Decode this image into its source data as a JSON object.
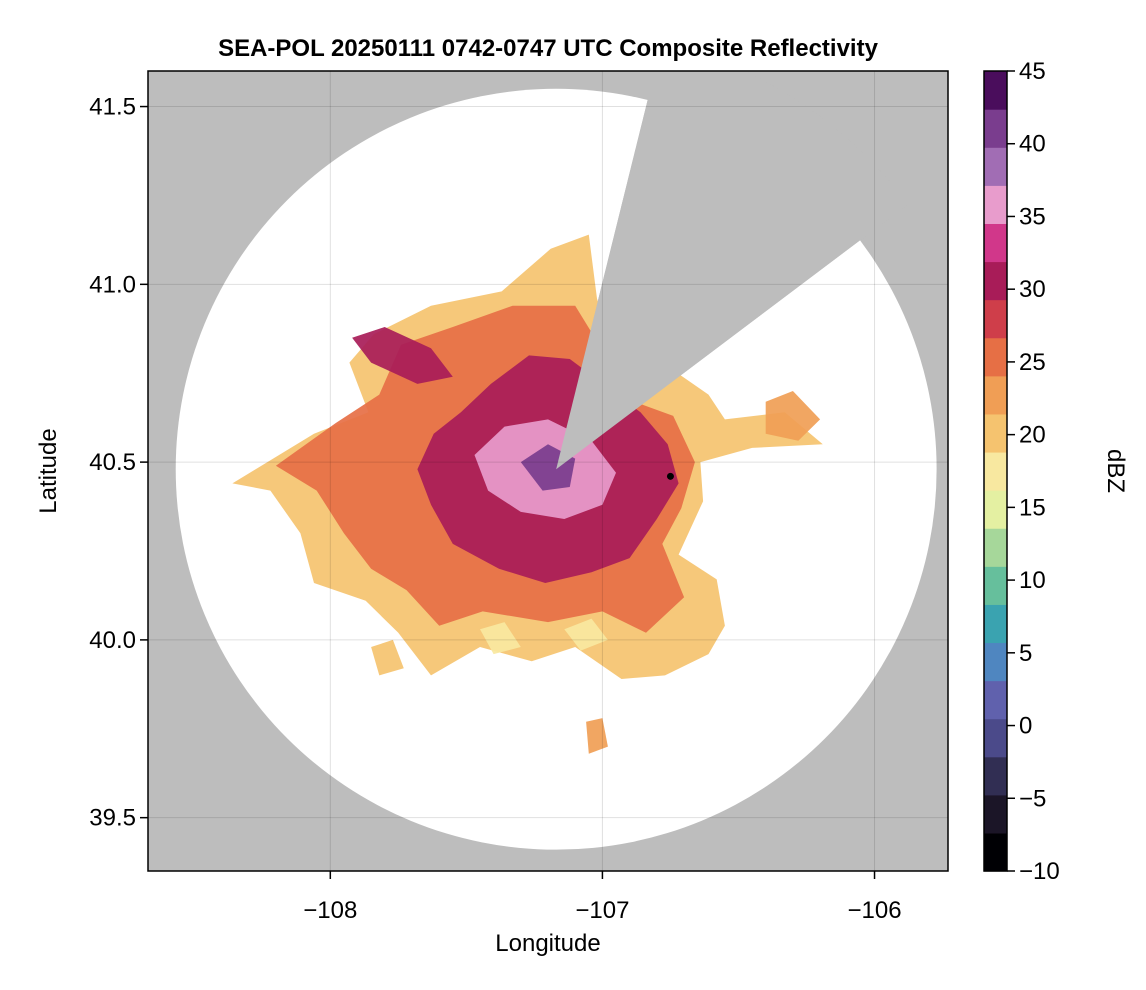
{
  "chart_data": {
    "type": "heatmap",
    "title": "SEA-POL 20250111 0742-0747 UTC Composite Reflectivity",
    "xlabel": "Longitude",
    "ylabel": "Latitude",
    "xlim": [
      -108.67,
      -105.73
    ],
    "ylim": [
      39.35,
      41.6
    ],
    "xticks": [
      -108,
      -107,
      -106
    ],
    "xtick_labels": [
      "−108",
      "−107",
      "−106"
    ],
    "yticks": [
      39.5,
      40.0,
      40.5,
      41.0,
      41.5
    ],
    "ytick_labels": [
      "39.5",
      "40.0",
      "40.5",
      "41.0",
      "41.5"
    ],
    "grid": true,
    "background_color": "#bdbdbd",
    "coverage_color": "#ffffff",
    "radar": {
      "center_lon": -107.17,
      "center_lat": 40.48,
      "range_lat_deg": 1.07,
      "blocked_sector": [
        [
          -106.83,
          41.53
        ],
        [
          -106.06,
          41.12
        ]
      ]
    },
    "marker": {
      "lon": -106.75,
      "lat": 40.46,
      "color": "#000000"
    },
    "colorbar": {
      "label": "dBZ",
      "min": -10,
      "max": 45,
      "ticks": [
        -10,
        -5,
        0,
        5,
        10,
        15,
        20,
        25,
        30,
        35,
        40,
        45
      ],
      "tick_labels": [
        "−10",
        "−5",
        "0",
        "5",
        "10",
        "15",
        "20",
        "25",
        "30",
        "35",
        "40",
        "45"
      ],
      "colors": [
        "#000004",
        "#1b1527",
        "#312e53",
        "#4b4a8a",
        "#6061ad",
        "#4f86c0",
        "#3aa3b0",
        "#66bf9c",
        "#a6d79a",
        "#e4f0a2",
        "#f8e8a0",
        "#f5c36f",
        "#f09e55",
        "#e66f45",
        "#cf3e4a",
        "#a81c58",
        "#d1378a",
        "#e89ccc",
        "#a16db4",
        "#7a3d8e",
        "#4a0d5c"
      ]
    },
    "echo_regions": [
      {
        "name": "outer-light",
        "dbz": 20,
        "points": [
          [
            -108.36,
            40.44
          ],
          [
            -108.06,
            40.58
          ],
          [
            -107.86,
            40.64
          ],
          [
            -107.93,
            40.78
          ],
          [
            -107.84,
            40.86
          ],
          [
            -107.63,
            40.94
          ],
          [
            -107.37,
            40.98
          ],
          [
            -107.19,
            41.1
          ],
          [
            -107.05,
            41.14
          ],
          [
            -107.02,
            40.96
          ],
          [
            -106.92,
            40.71
          ],
          [
            -106.78,
            40.78
          ],
          [
            -106.61,
            40.69
          ],
          [
            -106.55,
            40.62
          ],
          [
            -106.33,
            40.64
          ],
          [
            -106.19,
            40.55
          ],
          [
            -106.45,
            40.54
          ],
          [
            -106.64,
            40.5
          ],
          [
            -106.63,
            40.39
          ],
          [
            -106.72,
            40.24
          ],
          [
            -106.58,
            40.17
          ],
          [
            -106.55,
            40.04
          ],
          [
            -106.61,
            39.96
          ],
          [
            -106.77,
            39.9
          ],
          [
            -106.93,
            39.89
          ],
          [
            -107.1,
            39.98
          ],
          [
            -107.26,
            39.94
          ],
          [
            -107.45,
            39.98
          ],
          [
            -107.63,
            39.9
          ],
          [
            -107.75,
            40.02
          ],
          [
            -107.87,
            40.11
          ],
          [
            -108.06,
            40.16
          ],
          [
            -108.11,
            40.3
          ],
          [
            -108.22,
            40.42
          ]
        ]
      },
      {
        "name": "mid-orange",
        "dbz": 26,
        "points": [
          [
            -108.2,
            40.49
          ],
          [
            -107.98,
            40.61
          ],
          [
            -107.82,
            40.69
          ],
          [
            -107.74,
            40.83
          ],
          [
            -107.55,
            40.88
          ],
          [
            -107.33,
            40.94
          ],
          [
            -107.1,
            40.94
          ],
          [
            -106.98,
            40.79
          ],
          [
            -106.92,
            40.68
          ],
          [
            -106.74,
            40.63
          ],
          [
            -106.66,
            40.5
          ],
          [
            -106.71,
            40.37
          ],
          [
            -106.78,
            40.27
          ],
          [
            -106.7,
            40.12
          ],
          [
            -106.84,
            40.02
          ],
          [
            -107.0,
            40.08
          ],
          [
            -107.2,
            40.05
          ],
          [
            -107.44,
            40.08
          ],
          [
            -107.6,
            40.04
          ],
          [
            -107.72,
            40.14
          ],
          [
            -107.85,
            40.2
          ],
          [
            -107.95,
            40.3
          ],
          [
            -108.05,
            40.42
          ]
        ]
      },
      {
        "name": "strong-red",
        "dbz": 31,
        "points": [
          [
            -107.62,
            40.58
          ],
          [
            -107.52,
            40.64
          ],
          [
            -107.41,
            40.72
          ],
          [
            -107.27,
            40.8
          ],
          [
            -107.12,
            40.79
          ],
          [
            -106.98,
            40.71
          ],
          [
            -106.86,
            40.64
          ],
          [
            -106.76,
            40.55
          ],
          [
            -106.72,
            40.44
          ],
          [
            -106.8,
            40.34
          ],
          [
            -106.9,
            40.23
          ],
          [
            -107.04,
            40.19
          ],
          [
            -107.21,
            40.16
          ],
          [
            -107.38,
            40.2
          ],
          [
            -107.55,
            40.27
          ],
          [
            -107.63,
            40.38
          ],
          [
            -107.68,
            40.48
          ]
        ]
      },
      {
        "name": "core-magenta",
        "dbz": 36,
        "points": [
          [
            -107.47,
            40.52
          ],
          [
            -107.36,
            40.6
          ],
          [
            -107.2,
            40.62
          ],
          [
            -107.04,
            40.56
          ],
          [
            -106.95,
            40.47
          ],
          [
            -107.0,
            40.38
          ],
          [
            -107.14,
            40.34
          ],
          [
            -107.3,
            40.36
          ],
          [
            -107.42,
            40.42
          ]
        ]
      },
      {
        "name": "core-pink",
        "dbz": 40,
        "points": [
          [
            -107.3,
            40.5
          ],
          [
            -107.2,
            40.55
          ],
          [
            -107.1,
            40.51
          ],
          [
            -107.12,
            40.43
          ],
          [
            -107.22,
            40.42
          ]
        ]
      },
      {
        "name": "nw-band",
        "dbz": 30,
        "points": [
          [
            -107.92,
            40.85
          ],
          [
            -107.8,
            40.88
          ],
          [
            -107.63,
            40.82
          ],
          [
            -107.55,
            40.74
          ],
          [
            -107.68,
            40.72
          ],
          [
            -107.85,
            40.78
          ]
        ]
      },
      {
        "name": "south-green-1",
        "dbz": 17,
        "points": [
          [
            -107.45,
            40.03
          ],
          [
            -107.36,
            40.05
          ],
          [
            -107.3,
            39.98
          ],
          [
            -107.4,
            39.96
          ]
        ]
      },
      {
        "name": "south-green-2",
        "dbz": 17,
        "points": [
          [
            -107.14,
            40.03
          ],
          [
            -107.04,
            40.06
          ],
          [
            -106.98,
            40.0
          ],
          [
            -107.08,
            39.97
          ]
        ]
      },
      {
        "name": "east-patch",
        "dbz": 22,
        "points": [
          [
            -106.4,
            40.67
          ],
          [
            -106.3,
            40.7
          ],
          [
            -106.2,
            40.62
          ],
          [
            -106.28,
            40.56
          ],
          [
            -106.4,
            40.58
          ]
        ]
      },
      {
        "name": "south-blob",
        "dbz": 22,
        "points": [
          [
            -107.06,
            39.77
          ],
          [
            -107.0,
            39.78
          ],
          [
            -106.98,
            39.7
          ],
          [
            -107.05,
            39.68
          ]
        ]
      },
      {
        "name": "southwest-blob",
        "dbz": 21,
        "points": [
          [
            -107.85,
            39.98
          ],
          [
            -107.77,
            40.0
          ],
          [
            -107.73,
            39.92
          ],
          [
            -107.82,
            39.9
          ]
        ]
      }
    ]
  }
}
